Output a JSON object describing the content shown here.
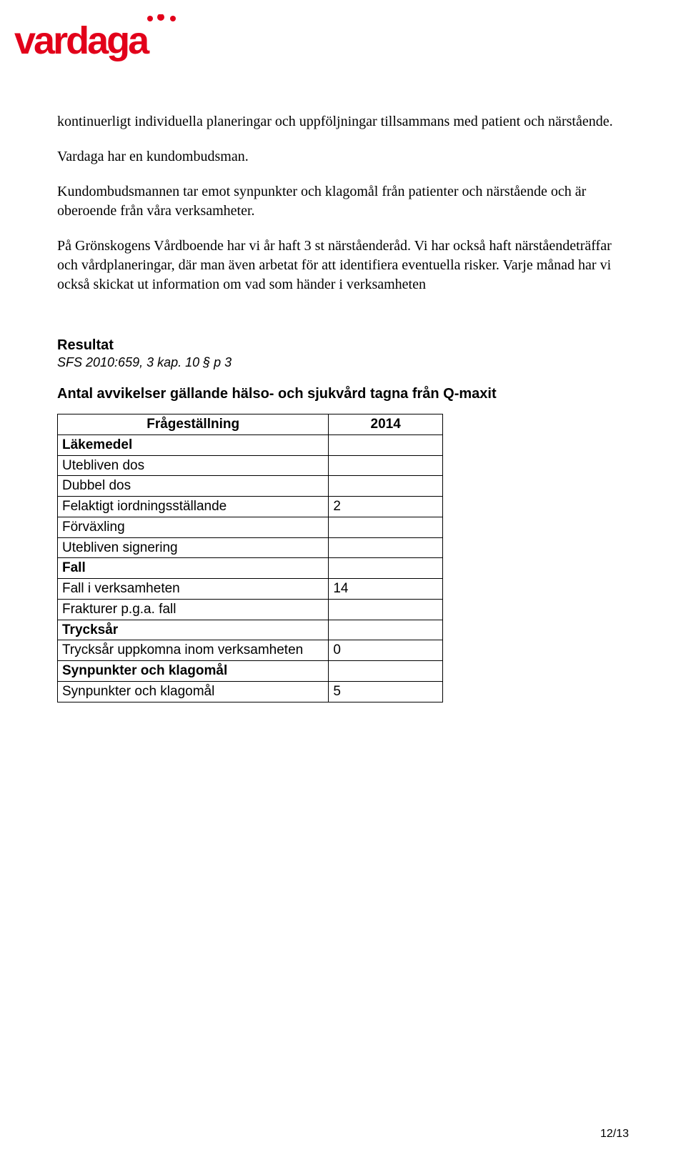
{
  "logo": {
    "text": "vardaga",
    "color": "#e2001a"
  },
  "paragraphs": {
    "p1": "kontinuerligt individuella planeringar och uppföljningar tillsammans med patient och närstående.",
    "p2": "Vardaga har en kundombudsman.",
    "p3": "Kundombudsmannen tar emot synpunkter och klagomål från patienter och närstående och är oberoende från våra verksamheter.",
    "p4": "På Grönskogens Vårdboende har vi år haft 3 st närståenderåd. Vi har också haft närståendeträffar och vårdplaneringar, där man även arbetat för att identifiera eventuella risker. Varje månad har vi också skickat ut information om vad som händer i verksamheten"
  },
  "resultat": {
    "heading": "Resultat",
    "sub": "SFS 2010:659, 3 kap. 10 § p 3",
    "table_title": "Antal avvikelser gällande hälso- och sjukvård tagna från Q-maxit"
  },
  "table": {
    "header_label": "Frågeställning",
    "header_value": "2014",
    "rows": [
      {
        "label": "Läkemedel",
        "value": "",
        "bold": true
      },
      {
        "label": "Utebliven dos",
        "value": "",
        "bold": false
      },
      {
        "label": "Dubbel dos",
        "value": "",
        "bold": false
      },
      {
        "label": "Felaktigt iordningsställande",
        "value": "2",
        "bold": false
      },
      {
        "label": "Förväxling",
        "value": "",
        "bold": false
      },
      {
        "label": "Utebliven signering",
        "value": "",
        "bold": false
      },
      {
        "label": "Fall",
        "value": "",
        "bold": true
      },
      {
        "label": "Fall i verksamheten",
        "value": "14",
        "bold": false
      },
      {
        "label": "Frakturer p.g.a. fall",
        "value": "",
        "bold": false
      },
      {
        "label": "Trycksår",
        "value": "",
        "bold": true
      },
      {
        "label": "Trycksår uppkomna inom verksamheten",
        "value": "0",
        "bold": false
      },
      {
        "label": "Synpunkter och klagomål",
        "value": "",
        "bold": true
      },
      {
        "label": "Synpunkter och klagomål",
        "value": "5",
        "bold": false
      }
    ]
  },
  "page_number": "12/13"
}
